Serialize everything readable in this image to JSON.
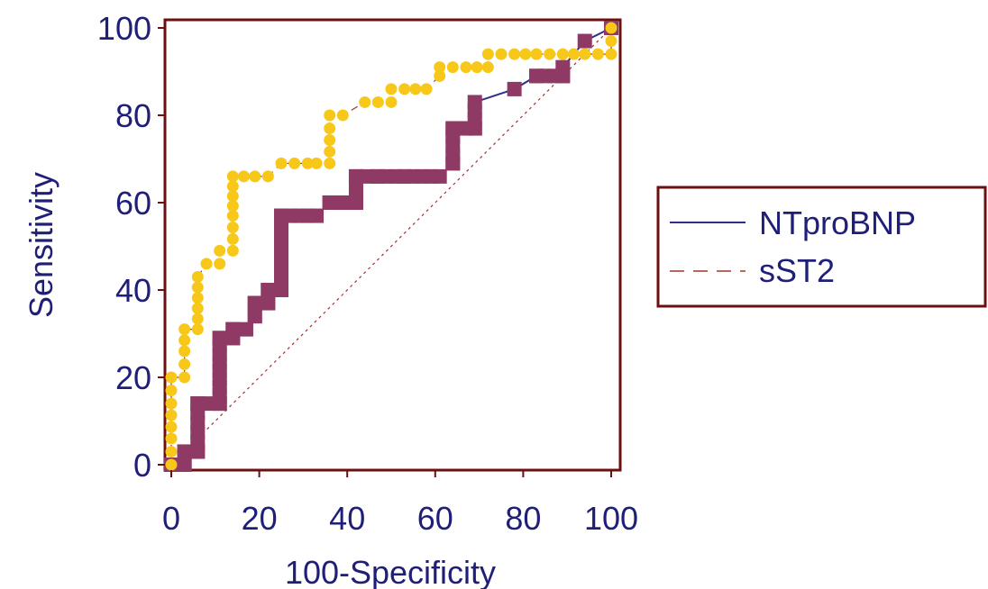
{
  "chart_data": {
    "type": "line",
    "title": "",
    "xlabel": "100-Specificity",
    "ylabel": "Sensitivity",
    "xlim": [
      0,
      100
    ],
    "ylim": [
      0,
      100
    ],
    "x_ticks": [
      "0",
      "20",
      "40",
      "60",
      "80",
      "100"
    ],
    "y_ticks": [
      "0",
      "20",
      "40",
      "60",
      "80",
      "100"
    ],
    "grid": false,
    "legend_position": "right",
    "colors": {
      "axis": "#6b0f0f",
      "text": "#1f1f7a",
      "ntprobnp_line": "#2e2e8c",
      "ntprobnp_marker": "#8f3a64",
      "sst2_line": "#a0302a",
      "sst2_marker": "#f7c81a",
      "diagonal": "#a0302a"
    },
    "series": [
      {
        "name": "NTproBNP",
        "style": "solid",
        "marker": "square",
        "x": [
          0,
          3,
          3,
          6,
          6,
          11,
          11,
          14,
          14,
          17,
          19,
          19,
          22,
          22,
          25,
          25,
          33,
          36,
          42,
          42,
          47,
          53,
          61,
          64,
          64,
          67,
          69,
          69,
          78,
          83,
          89,
          89,
          94,
          100
        ],
        "y": [
          0,
          0,
          3,
          3,
          14,
          14,
          29,
          29,
          31,
          31,
          34,
          37,
          37,
          40,
          40,
          57,
          57,
          60,
          60,
          66,
          66,
          66,
          66,
          69,
          77,
          77,
          77,
          83,
          86,
          89,
          89,
          91,
          97,
          100
        ]
      },
      {
        "name": "sST2",
        "style": "dashed",
        "marker": "circle",
        "x": [
          0,
          0,
          0,
          0,
          0,
          3,
          3,
          3,
          6,
          6,
          8,
          11,
          11,
          14,
          14,
          14,
          19,
          22,
          25,
          28,
          31,
          33,
          36,
          36,
          36,
          39,
          44,
          47,
          50,
          50,
          53,
          58,
          61,
          61,
          64,
          67,
          72,
          72,
          78,
          83,
          86,
          89,
          94,
          97,
          100,
          100,
          100
        ],
        "y": [
          0,
          3,
          6,
          14,
          20,
          20,
          26,
          31,
          31,
          43,
          46,
          46,
          49,
          49,
          57,
          66,
          66,
          66,
          69,
          69,
          69,
          69,
          69,
          77,
          80,
          80,
          83,
          83,
          83,
          86,
          86,
          86,
          89,
          91,
          91,
          91,
          91,
          94,
          94,
          94,
          94,
          94,
          94,
          94,
          94,
          97,
          100
        ]
      }
    ],
    "reference_line": {
      "style": "dotted",
      "from": [
        0,
        0
      ],
      "to": [
        100,
        100
      ]
    }
  }
}
